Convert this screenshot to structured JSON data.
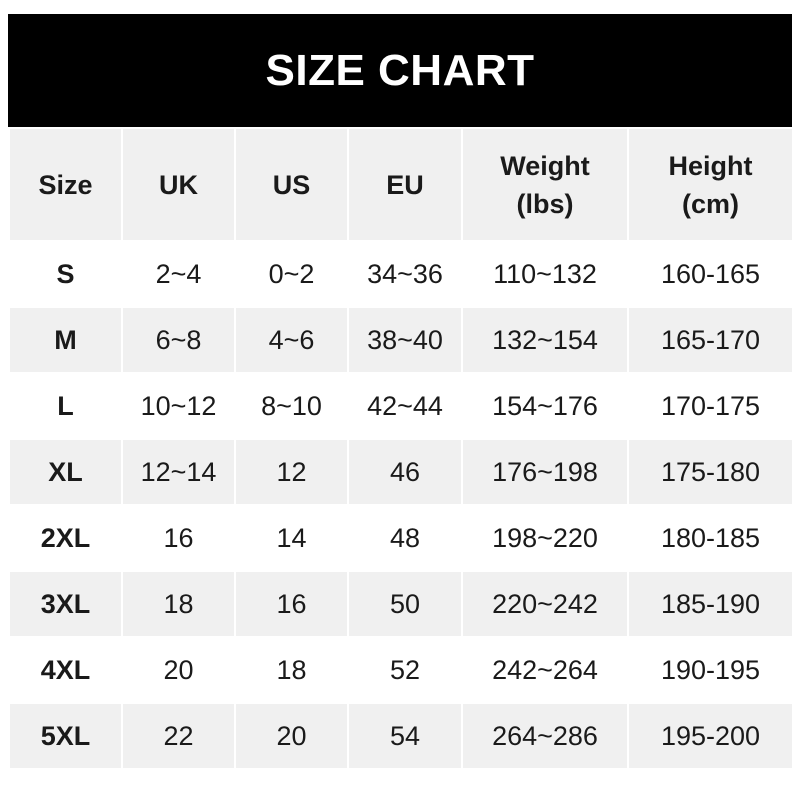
{
  "title": "SIZE CHART",
  "headers": [
    "Size",
    "UK",
    "US",
    "EU",
    "Weight\n(lbs)",
    "Height\n(cm)"
  ],
  "header_lines": [
    [
      "Size"
    ],
    [
      "UK"
    ],
    [
      "US"
    ],
    [
      "EU"
    ],
    [
      "Weight",
      "(lbs)"
    ],
    [
      "Height",
      "(cm)"
    ]
  ],
  "rows": [
    [
      "S",
      "2~4",
      "0~2",
      "34~36",
      "110~132",
      "160-165"
    ],
    [
      "M",
      "6~8",
      "4~6",
      "38~40",
      "132~154",
      "165-170"
    ],
    [
      "L",
      "10~12",
      "8~10",
      "42~44",
      "154~176",
      "170-175"
    ],
    [
      "XL",
      "12~14",
      "12",
      "46",
      "176~198",
      "175-180"
    ],
    [
      "2XL",
      "16",
      "14",
      "48",
      "198~220",
      "180-185"
    ],
    [
      "3XL",
      "18",
      "16",
      "50",
      "220~242",
      "185-190"
    ],
    [
      "4XL",
      "20",
      "18",
      "52",
      "242~264",
      "190-195"
    ],
    [
      "5XL",
      "22",
      "20",
      "54",
      "264~286",
      "195-200"
    ]
  ],
  "colors": {
    "title_bg": "#000000",
    "stripe": "#f0f0f0"
  }
}
